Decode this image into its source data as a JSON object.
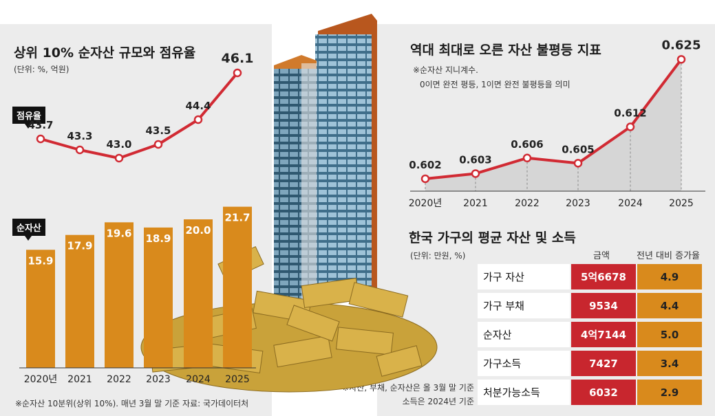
{
  "left_chart": {
    "title": "상위 10% 순자산 규모와 점유율",
    "unit_note": "(단위: %, 억원)",
    "share_tag": "점유율",
    "networth_tag": "순자산",
    "footnote": "※순자산 10분위(상위 10%). 매년 3월 말 기준    자료: 국가데이터처"
  },
  "right_chart": {
    "title": "역대 최대로 오른 자산 불평등 지표",
    "note_line1": "※순자산 지니계수.",
    "note_line2": "0이면 완전 평등, 1이면 완전 불평등을 의미"
  },
  "table": {
    "title": "한국 가구의 평균 자산 및 소득",
    "unit_note": "(단위: 만원, %)",
    "col_amount": "금액",
    "col_growth": "전년 대비 증가율",
    "rows": [
      {
        "label": "가구 자산",
        "amount": "5억6678",
        "growth": "4.9"
      },
      {
        "label": "가구 부채",
        "amount": "9534",
        "growth": "4.4"
      },
      {
        "label": "순자산",
        "amount": "4억7144",
        "growth": "5.0"
      },
      {
        "label": "가구소득",
        "amount": "7427",
        "growth": "3.4"
      },
      {
        "label": "처분가능소득",
        "amount": "6032",
        "growth": "2.9"
      }
    ],
    "footnote1": "※자산, 부채, 순자산은 올 3월 말 기준",
    "footnote2": "소득은 2024년 기준"
  },
  "colors": {
    "bar": "#d98a1c",
    "line": "#d12a33",
    "area": "#d6d6d6",
    "panel": "#ececec"
  },
  "chart_data": [
    {
      "type": "bar",
      "categories": [
        "2020년",
        "2021",
        "2022",
        "2023",
        "2024",
        "2025"
      ],
      "series": [
        {
          "name": "순자산",
          "values": [
            15.9,
            17.9,
            19.6,
            18.9,
            20.0,
            21.7
          ]
        }
      ],
      "ylim": [
        0,
        25
      ]
    },
    {
      "type": "line",
      "categories": [
        "2020년",
        "2021",
        "2022",
        "2023",
        "2024",
        "2025"
      ],
      "series": [
        {
          "name": "점유율",
          "values": [
            43.7,
            43.3,
            43.0,
            43.5,
            44.4,
            46.1
          ]
        }
      ],
      "ylim": [
        42.5,
        46.5
      ]
    },
    {
      "type": "area",
      "categories": [
        "2020년",
        "2021",
        "2022",
        "2023",
        "2024",
        "2025"
      ],
      "values": [
        0.602,
        0.603,
        0.606,
        0.605,
        0.612,
        0.625
      ],
      "ylim": [
        0.598,
        0.627
      ]
    }
  ]
}
